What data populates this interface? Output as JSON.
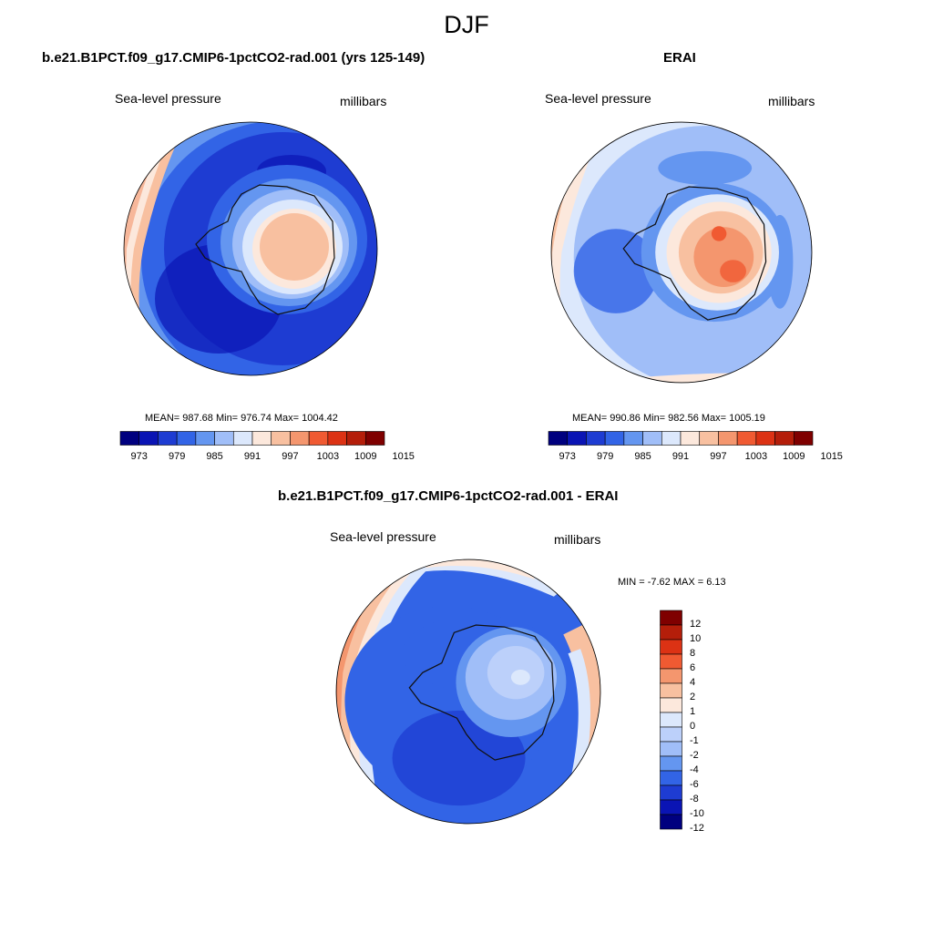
{
  "figure": {
    "season": "DJF"
  },
  "panels": [
    {
      "title": "b.e21.B1PCT.f09_g17.CMIP6-1pctCO2-rad.001 (yrs 125-149)",
      "left_label": "Sea-level pressure",
      "right_label": "millibars",
      "stats_text": "MEAN= 987.68  Min= 976.74  Max= 1004.42",
      "stats": {
        "mean": 987.68,
        "min": 976.74,
        "max": 1004.42
      },
      "colorbar": {
        "orientation": "horizontal",
        "tick_labels": [
          "973",
          "979",
          "985",
          "991",
          "997",
          "1003",
          "1009",
          "1015"
        ]
      }
    },
    {
      "title": "ERAI",
      "left_label": "Sea-level pressure",
      "right_label": "millibars",
      "stats_text": "MEAN= 990.86  Min= 982.56  Max= 1005.19",
      "stats": {
        "mean": 990.86,
        "min": 982.56,
        "max": 1005.19
      },
      "colorbar": {
        "orientation": "horizontal",
        "tick_labels": [
          "973",
          "979",
          "985",
          "991",
          "997",
          "1003",
          "1009",
          "1015"
        ]
      }
    },
    {
      "title": "b.e21.B1PCT.f09_g17.CMIP6-1pctCO2-rad.001 - ERAI",
      "left_label": "Sea-level pressure",
      "right_label": "millibars",
      "stats_text": "MIN =  -7.62 MAX =   6.13",
      "stats": {
        "min": -7.62,
        "max": 6.13
      },
      "colorbar": {
        "orientation": "vertical",
        "tick_labels": [
          "12",
          "10",
          "8",
          "6",
          "4",
          "2",
          "1",
          "0",
          "-1",
          "-2",
          "-4",
          "-6",
          "-8",
          "-10",
          "-12"
        ]
      }
    }
  ],
  "colors": {
    "abs_scale": [
      "#00007f",
      "#0a14b4",
      "#1e3cd2",
      "#3264e6",
      "#6496f0",
      "#a0bef8",
      "#dce8fc",
      "#fce8dc",
      "#f8c0a0",
      "#f4966e",
      "#f05a32",
      "#dc3214",
      "#b41e0a",
      "#7f0000"
    ],
    "diff_scale": [
      "#7f0000",
      "#b41e0a",
      "#dc3214",
      "#f05a32",
      "#f4966e",
      "#f8c0a0",
      "#fce8dc",
      "#dce8fc",
      "#bcd0fa",
      "#a0bef8",
      "#6496f0",
      "#3264e6",
      "#1e3cd2",
      "#0a14b4",
      "#00007f"
    ]
  }
}
